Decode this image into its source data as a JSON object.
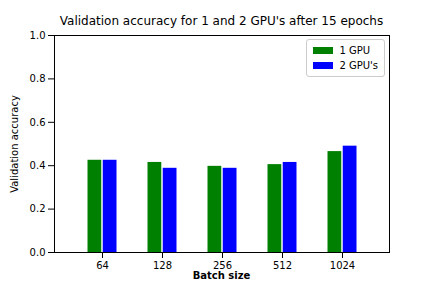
{
  "chart_data": {
    "type": "bar",
    "title": "Validation accuracy for 1 and 2 GPU's after 15 epochs",
    "x_label": "Batch size",
    "y_label": "Validation accuracy",
    "categories": [
      "64",
      "128",
      "256",
      "512",
      "1024"
    ],
    "series": [
      {
        "name": "1 GPU",
        "color": "#008000",
        "values": [
          0.425,
          0.415,
          0.397,
          0.405,
          0.465
        ]
      },
      {
        "name": "2 GPU's",
        "color": "#0000ff",
        "values": [
          0.425,
          0.388,
          0.388,
          0.415,
          0.49
        ]
      }
    ],
    "ylim": [
      0,
      1
    ],
    "yticks": [
      {
        "value": 0,
        "label": "0.0"
      },
      0.2,
      0.4,
      0.6,
      0.8,
      {
        "value": 1,
        "label": "1.0"
      }
    ],
    "grid": false,
    "legend": "upper right"
  }
}
